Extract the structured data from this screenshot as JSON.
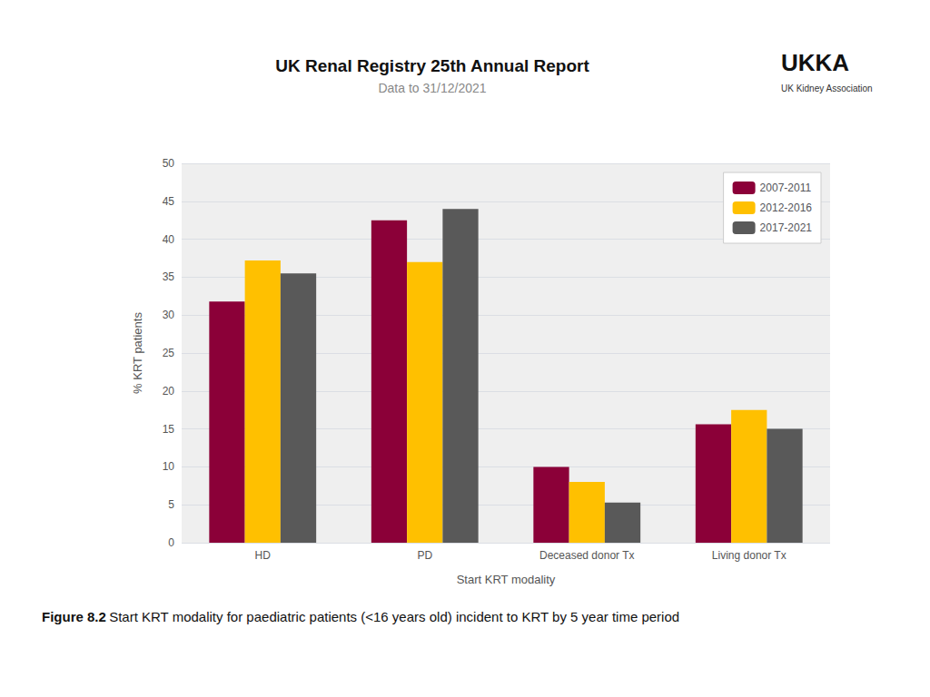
{
  "chart_data": {
    "type": "bar",
    "title": "UK Renal Registry 25th Annual Report",
    "subtitle": "Data to 31/12/2021",
    "categories": [
      "HD",
      "PD",
      "Deceased donor Tx",
      "Living donor Tx"
    ],
    "series": [
      {
        "name": "2007-2011",
        "color": "#8B0038",
        "values": [
          31.8,
          42.5,
          10.0,
          15.6
        ]
      },
      {
        "name": "2012-2016",
        "color": "#FFC000",
        "values": [
          37.2,
          37.0,
          8.0,
          17.5
        ]
      },
      {
        "name": "2017-2021",
        "color": "#595959",
        "values": [
          35.5,
          44.0,
          5.3,
          15.0
        ]
      }
    ],
    "xlabel": "Start KRT modality",
    "ylabel": "% KRT patients",
    "ylim": [
      0,
      50
    ],
    "yticks": [
      0,
      5,
      10,
      15,
      20,
      25,
      30,
      35,
      40,
      45,
      50
    ],
    "grid": true,
    "legend": "upper right",
    "annotations": [
      "Figure 8.2",
      "Start KRT modality for paediatric patients (<16 years old) incident to KRT by 5 year time period",
      "UKKA",
      "UK Kidney Association"
    ]
  }
}
